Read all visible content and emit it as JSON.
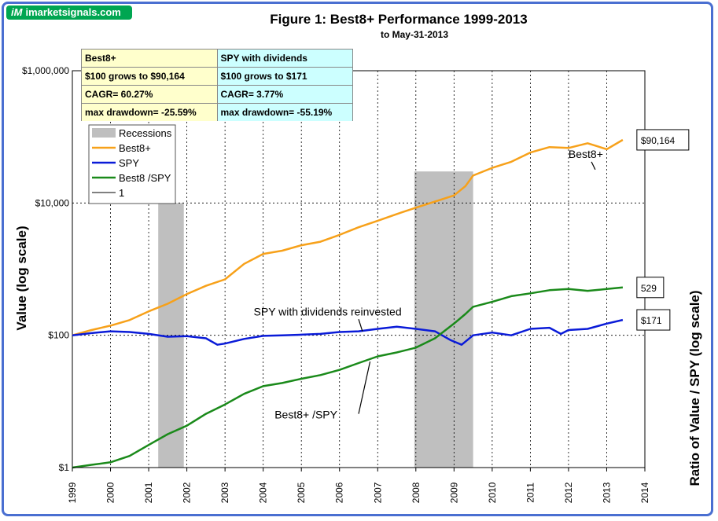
{
  "brand": {
    "prefix": "iM",
    "name": "imarketsignals.com"
  },
  "colors": {
    "best8": "#f7a11a",
    "spy": "#0a1bd8",
    "ratio": "#1a8a1a",
    "recession": "#bfbfbf",
    "stats_left": "#ffffcc",
    "stats_right": "#ccffff",
    "frame": "#4a6fd1"
  },
  "chart_data": {
    "type": "line",
    "title": "Figure 1:  Best8+ Performance  1999-2013",
    "subtitle": "to May-31-2013",
    "ylabel": "Value  (log scale)",
    "y2label": "Ratio of Value / SPY (log scale)",
    "xlim": [
      1999,
      2014
    ],
    "ylim": [
      1,
      1000000
    ],
    "yscale": "log",
    "x_ticks": [
      "1999",
      "2000",
      "2001",
      "2002",
      "2003",
      "2004",
      "2005",
      "2006",
      "2007",
      "2008",
      "2009",
      "2010",
      "2011",
      "2012",
      "2013",
      "2014"
    ],
    "y_ticks": [
      {
        "value": 1000000,
        "label": "$1,000,000"
      },
      {
        "value": 10000,
        "label": "$10,000"
      },
      {
        "value": 100,
        "label": "$100"
      },
      {
        "value": 1,
        "label": "$1"
      }
    ],
    "grid": true,
    "recessions": [
      [
        2001.25,
        2001.92
      ],
      [
        2007.96,
        2009.5
      ]
    ],
    "series": [
      {
        "name": "Best8+",
        "key": "best8",
        "x": [
          1999.0,
          1999.5,
          2000.0,
          2000.5,
          2001.0,
          2001.5,
          2002.0,
          2002.5,
          2003.0,
          2003.5,
          2004.0,
          2004.5,
          2005.0,
          2005.5,
          2006.0,
          2006.5,
          2007.0,
          2007.5,
          2008.0,
          2008.5,
          2009.0,
          2009.3,
          2009.5,
          2010.0,
          2010.5,
          2011.0,
          2011.5,
          2012.0,
          2012.5,
          2013.0,
          2013.42
        ],
        "y": [
          100,
          120,
          140,
          170,
          230,
          300,
          420,
          560,
          700,
          1200,
          1700,
          1900,
          2300,
          2600,
          3300,
          4300,
          5400,
          6800,
          8500,
          10500,
          13000,
          18000,
          26000,
          34000,
          42000,
          58000,
          70000,
          68000,
          80000,
          65000,
          90164
        ]
      },
      {
        "name": "SPY",
        "key": "spy",
        "x": [
          1999.0,
          1999.5,
          2000.0,
          2000.5,
          2001.0,
          2001.5,
          2002.0,
          2002.5,
          2002.8,
          2003.0,
          2003.5,
          2004.0,
          2004.5,
          2005.0,
          2005.5,
          2006.0,
          2006.5,
          2007.0,
          2007.5,
          2008.0,
          2008.5,
          2008.9,
          2009.2,
          2009.5,
          2010.0,
          2010.5,
          2011.0,
          2011.5,
          2011.8,
          2012.0,
          2012.5,
          2013.0,
          2013.42
        ],
        "y": [
          100,
          108,
          115,
          112,
          105,
          95,
          97,
          90,
          72,
          75,
          88,
          98,
          100,
          102,
          105,
          112,
          115,
          125,
          135,
          125,
          115,
          85,
          72,
          100,
          110,
          100,
          125,
          130,
          105,
          120,
          125,
          150,
          171
        ]
      },
      {
        "name": "Best8 /SPY",
        "key": "ratio",
        "x": [
          1999.0,
          1999.5,
          2000.0,
          2000.5,
          2001.0,
          2001.5,
          2002.0,
          2002.5,
          2003.0,
          2003.5,
          2004.0,
          2004.5,
          2005.0,
          2005.5,
          2006.0,
          2006.5,
          2007.0,
          2007.5,
          2008.0,
          2008.5,
          2009.0,
          2009.3,
          2009.5,
          2010.0,
          2010.5,
          2011.0,
          2011.5,
          2012.0,
          2012.5,
          2013.0,
          2013.42
        ],
        "y": [
          1,
          1.1,
          1.2,
          1.5,
          2.2,
          3.2,
          4.3,
          6.5,
          9,
          13,
          17,
          19,
          22,
          25,
          30,
          38,
          48,
          55,
          65,
          90,
          150,
          210,
          270,
          320,
          390,
          430,
          480,
          500,
          470,
          500,
          529
        ]
      },
      {
        "name": "1",
        "key": "one",
        "x": [
          1999,
          2014
        ],
        "y": [
          1,
          1
        ]
      }
    ],
    "legend": [
      "Recessions",
      "Best8+",
      "SPY",
      "Best8 /SPY",
      "1"
    ],
    "annotations": {
      "best8_label": "Best8+",
      "spy_label": "SPY with dividends reinvested",
      "ratio_label": "Best8+ /SPY",
      "end_best8": "$90,164",
      "end_ratio": "529",
      "end_spy": "$171"
    }
  },
  "stats": {
    "left": [
      "Best8+",
      "$100 grows to $90,164",
      "CAGR=  60.27%",
      "max drawdown= -25.59%"
    ],
    "right": [
      "SPY with dividends",
      "$100 grows to $171",
      "CAGR=  3.77%",
      "max drawdown= -55.19%"
    ]
  }
}
